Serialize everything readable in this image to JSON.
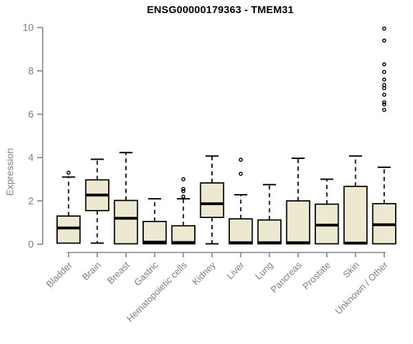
{
  "title": "ENSG00000179363 - TMEM31",
  "chart_data": {
    "type": "boxplot",
    "title": "ENSG00000179363 - TMEM31",
    "ylabel": "Expression",
    "xlabel": "",
    "ylim": [
      0,
      10
    ],
    "yticks": [
      0,
      2,
      4,
      6,
      8,
      10
    ],
    "grid": false,
    "legend": "none",
    "colors": {
      "box_fill": "#EDE8D0",
      "box_stroke": "#000000",
      "median": "#000000",
      "whisker": "#000000",
      "outlier": "#000000",
      "axis": "#808080",
      "tick_label": "#808080",
      "title": "#000000",
      "background": "#ffffff"
    },
    "categories": [
      "Bladder",
      "Brain",
      "Breast",
      "Gastric",
      "Hematopoietic cells",
      "Kidney",
      "Liver",
      "Lung",
      "Pancreas",
      "Prostate",
      "Skin",
      "Unknown / Other"
    ],
    "boxes": [
      {
        "category": "Bladder",
        "whisker_low": null,
        "q1": 0.05,
        "median": 0.75,
        "q3": 1.3,
        "whisker_high": 3.1,
        "outliers": [
          3.3
        ]
      },
      {
        "category": "Brain",
        "whisker_low": 0.05,
        "q1": 1.55,
        "median": 2.27,
        "q3": 2.97,
        "whisker_high": 3.92,
        "outliers": []
      },
      {
        "category": "Breast",
        "whisker_low": null,
        "q1": 0.02,
        "median": 1.2,
        "q3": 2.02,
        "whisker_high": 4.23,
        "outliers": []
      },
      {
        "category": "Gastric",
        "whisker_low": null,
        "q1": 0.02,
        "median": 0.1,
        "q3": 1.05,
        "whisker_high": 2.1,
        "outliers": []
      },
      {
        "category": "Hematopoietic cells",
        "whisker_low": null,
        "q1": 0.02,
        "median": 0.08,
        "q3": 0.85,
        "whisker_high": 2.1,
        "outliers": [
          2.2,
          2.45,
          2.55,
          3.0
        ]
      },
      {
        "category": "Kidney",
        "whisker_low": 0.02,
        "q1": 1.24,
        "median": 1.87,
        "q3": 2.83,
        "whisker_high": 4.07,
        "outliers": []
      },
      {
        "category": "Liver",
        "whisker_low": null,
        "q1": 0.02,
        "median": 0.07,
        "q3": 1.17,
        "whisker_high": 2.28,
        "outliers": [
          3.25,
          3.9
        ]
      },
      {
        "category": "Lung",
        "whisker_low": null,
        "q1": 0.02,
        "median": 0.07,
        "q3": 1.12,
        "whisker_high": 2.75,
        "outliers": []
      },
      {
        "category": "Pancreas",
        "whisker_low": null,
        "q1": 0.02,
        "median": 0.07,
        "q3": 2.0,
        "whisker_high": 3.97,
        "outliers": []
      },
      {
        "category": "Prostate",
        "whisker_low": null,
        "q1": 0.02,
        "median": 0.88,
        "q3": 1.85,
        "whisker_high": 3.0,
        "outliers": []
      },
      {
        "category": "Skin",
        "whisker_low": null,
        "q1": 0.02,
        "median": 0.05,
        "q3": 2.67,
        "whisker_high": 4.07,
        "outliers": []
      },
      {
        "category": "Unknown / Other",
        "whisker_low": null,
        "q1": 0.02,
        "median": 0.9,
        "q3": 1.87,
        "whisker_high": 3.55,
        "outliers": [
          6.2,
          6.45,
          6.55,
          6.9,
          7.2,
          7.35,
          7.6,
          7.95,
          8.3,
          9.4,
          9.95
        ]
      }
    ]
  }
}
